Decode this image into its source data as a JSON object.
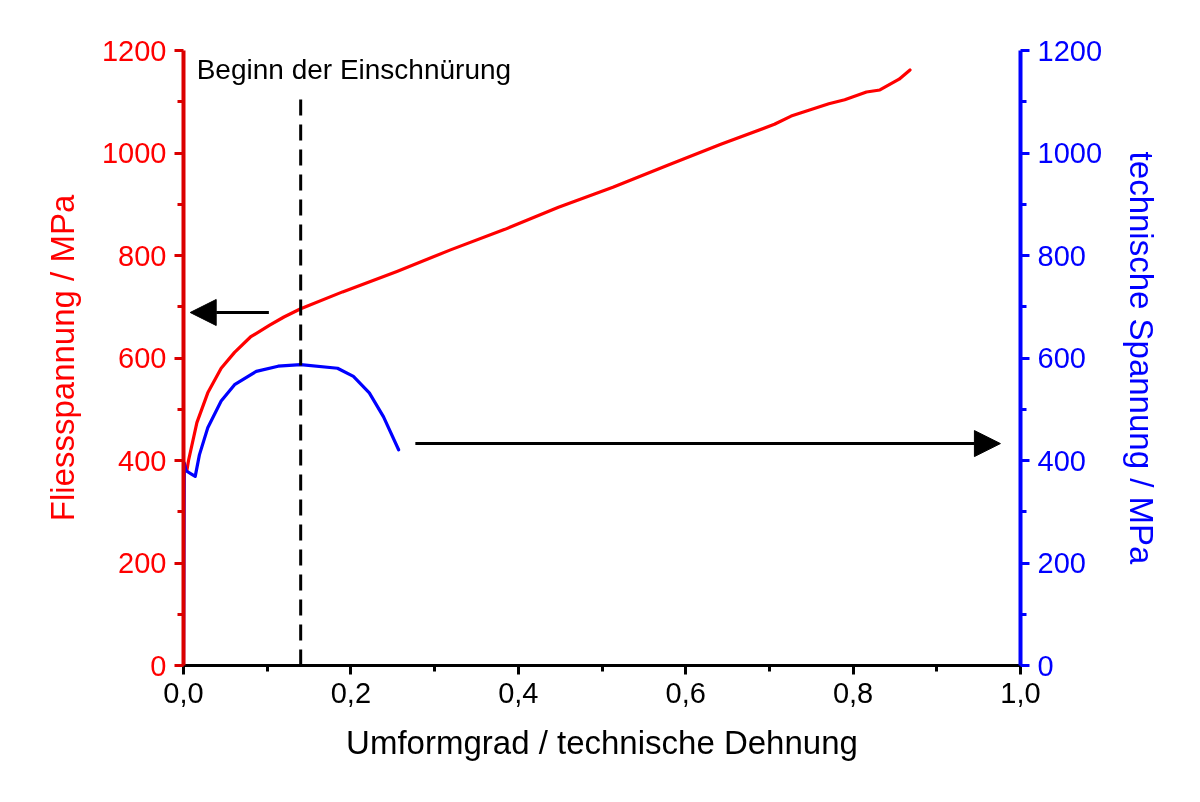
{
  "chart_data": {
    "type": "line",
    "xlabel": "Umformgrad / technische Dehnung",
    "ylabel": "Fliessspannung / MPa",
    "y2label": "technische Spannung / MPa",
    "xlim": [
      0,
      1.0
    ],
    "xticks": [
      {
        "value": 0,
        "label": "0,0"
      },
      {
        "value": 0.1,
        "label": null
      },
      {
        "value": 0.2,
        "label": "0,2"
      },
      {
        "value": 0.3,
        "label": null
      },
      {
        "value": 0.4,
        "label": "0,4"
      },
      {
        "value": 0.5,
        "label": null
      },
      {
        "value": 0.6,
        "label": "0,6"
      },
      {
        "value": 0.7,
        "label": null
      },
      {
        "value": 0.8,
        "label": "0,8"
      },
      {
        "value": 0.9,
        "label": null
      },
      {
        "value": 1.0,
        "label": "1,0"
      }
    ],
    "ylim": [
      0,
      1200
    ],
    "yticks": [
      0,
      {
        "value": 100,
        "label": null
      },
      200,
      {
        "value": 300,
        "label": null
      },
      400,
      {
        "value": 500,
        "label": null
      },
      600,
      {
        "value": 700,
        "label": null
      },
      800,
      {
        "value": 900,
        "label": null
      },
      1000,
      {
        "value": 1100,
        "label": null
      },
      1200
    ],
    "y2lim": [
      0,
      1200
    ],
    "y2ticks": [
      0,
      {
        "value": 100,
        "label": null
      },
      200,
      {
        "value": 300,
        "label": null
      },
      400,
      {
        "value": 500,
        "label": null
      },
      600,
      {
        "value": 700,
        "label": null
      },
      800,
      {
        "value": 900,
        "label": null
      },
      1000,
      {
        "value": 1100,
        "label": null
      },
      1200
    ],
    "grid": false,
    "line_style": "solid",
    "series": [
      {
        "color": "#ff0000",
        "x": [
          0.004,
          0.006,
          0.016,
          0.029,
          0.045,
          0.061,
          0.08,
          0.103,
          0.12,
          0.14,
          0.19,
          0.255,
          0.319,
          0.384,
          0.448,
          0.513,
          0.577,
          0.642,
          0.706,
          0.726,
          0.771,
          0.79,
          0.816,
          0.832,
          0.855,
          0.868
        ],
        "values": [
          380,
          400,
          474,
          532,
          580,
          611,
          641,
          664,
          680,
          696,
          729,
          769,
          811,
          851,
          894,
          933,
          975,
          1017,
          1056,
          1072,
          1096,
          1104,
          1119,
          1123,
          1144,
          1162
        ]
      },
      {
        "color": "#0000ff",
        "axis": "y2",
        "x": [
          0,
          0.001,
          0.003,
          0.009,
          0.014,
          0.019,
          0.029,
          0.045,
          0.061,
          0.087,
          0.113,
          0.14,
          0.184,
          0.203,
          0.222,
          0.239,
          0.257
        ],
        "values": [
          0,
          395,
          380,
          374,
          369,
          411,
          464,
          516,
          548,
          574,
          584,
          587,
          580,
          564,
          532,
          485,
          421
        ]
      }
    ],
    "ref_lines": [
      {
        "axis": "x",
        "value": 0.14,
        "label": "Beginn der Einschnürung",
        "color": "#000000",
        "line_style": "dashed"
      }
    ]
  }
}
